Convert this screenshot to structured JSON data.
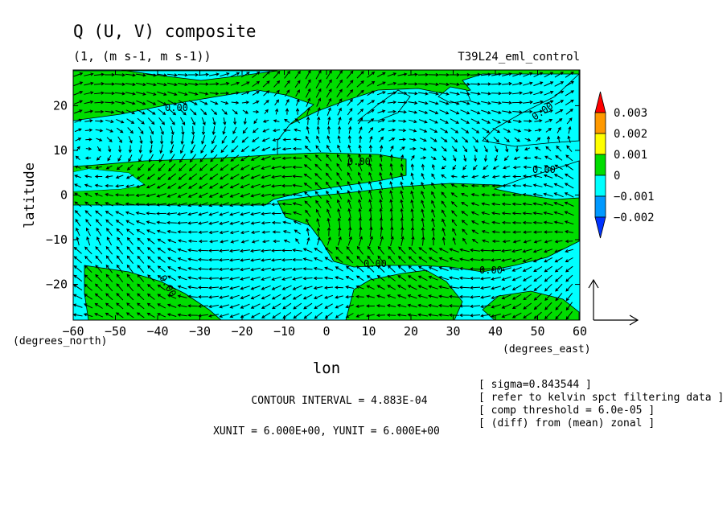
{
  "chart_data": {
    "type": "contour-vector",
    "title": "Q (U, V) composite",
    "subtitle": "(1, (m s-1, m s-1))",
    "run_name": "T39L24_eml_control",
    "xlabel": "lon",
    "ylabel": "latitude",
    "x_units": "(degrees_east)",
    "y_units": "(degrees_north)",
    "xlim": [
      -60,
      60
    ],
    "ylim": [
      -28,
      28
    ],
    "x_ticks": [
      -60,
      -50,
      -40,
      -30,
      -20,
      -10,
      0,
      10,
      20,
      30,
      40,
      50,
      60
    ],
    "y_ticks": [
      20,
      10,
      0,
      -10,
      -20
    ],
    "contour_label": "0.00",
    "colorbar": {
      "labels": [
        "0.003",
        "0.002",
        "0.001",
        "0",
        "-0.001",
        "-0.002"
      ],
      "colors": [
        "#ff0000",
        "#ff9900",
        "#ffff00",
        "#00dd00",
        "#00ffff",
        "#0099ff",
        "#0033ff"
      ]
    },
    "fill_colors": {
      "positive": "#00dd00",
      "negative": "#00ffff"
    },
    "contour_interval": "CONTOUR INTERVAL = 4.883E-04",
    "vector_units": "XUNIT = 6.000E+00, YUNIT = 6.000E+00",
    "notes": [
      "[ sigma=0.843544 ]",
      "[ refer to kelvin spct filtering data ]",
      "[ comp threshold = 6.0e-05 ]",
      "[ (diff) from (mean) zonal ]"
    ]
  }
}
